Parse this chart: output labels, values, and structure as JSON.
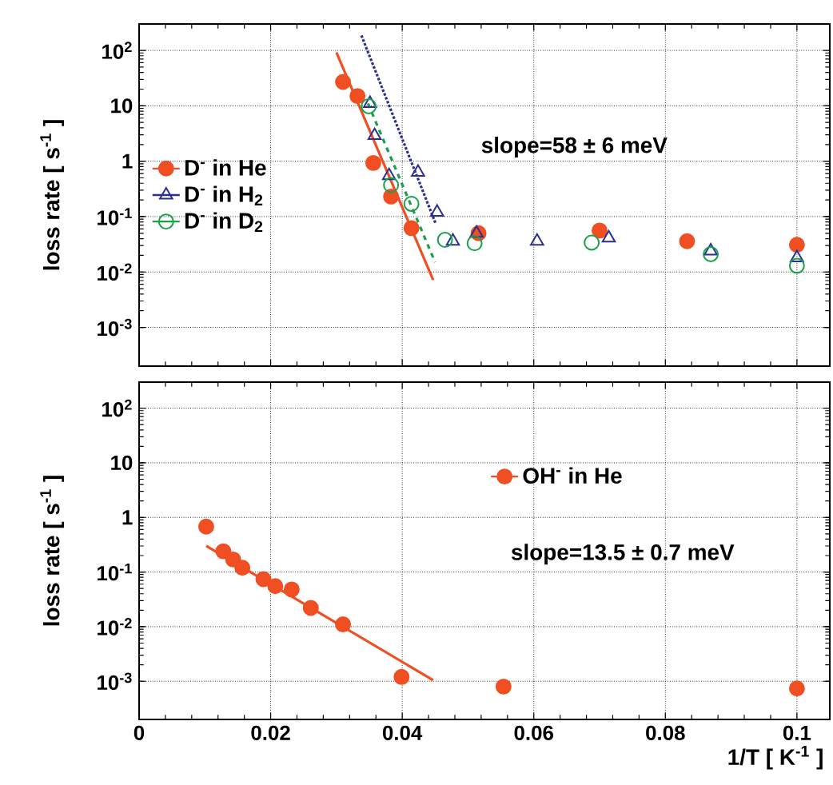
{
  "chart_data": [
    {
      "type": "scatter",
      "ylabel": "loss rate [ s$^{-1}$ ]",
      "log": "y",
      "grid": true,
      "legend": "left",
      "tick_labels": "y",
      "xlim": [
        0,
        0.105
      ],
      "xticks": [
        0,
        0.02,
        0.04,
        0.06,
        0.08,
        0.1
      ],
      "ylim": [
        0.0002,
        300
      ],
      "yticks": [
        {
          "value": 0.001,
          "label": "10$^{-3}$"
        },
        {
          "value": 0.01,
          "label": "10$^{-2}$"
        },
        {
          "value": 0.1,
          "label": "10$^{-1}$"
        },
        1,
        10,
        {
          "value": 100,
          "label": "10$^{2}$"
        }
      ],
      "annotations": [
        "slope=58 ± 6 meV"
      ],
      "series": [
        {
          "name": "D$^{-}$ in He",
          "color": "#f04e23",
          "marker": "circle",
          "x": [
            0.031,
            0.0332,
            0.0356,
            0.0383,
            0.0414,
            0.0516,
            0.07,
            0.0833,
            0.1
          ],
          "values": [
            27,
            15,
            0.93,
            0.23,
            0.062,
            0.05,
            0.056,
            0.036,
            0.031
          ]
        },
        {
          "name": "D$^{-}$ in H$_{2}$",
          "color": "#2b2f8f",
          "marker": "triangle",
          "x": [
            0.0351,
            0.0358,
            0.038,
            0.0424,
            0.0453,
            0.0477,
            0.0513,
            0.0605,
            0.0714,
            0.0869,
            0.1
          ],
          "values": [
            11,
            2.9,
            0.55,
            0.63,
            0.12,
            0.036,
            0.05,
            0.036,
            0.041,
            0.024,
            0.018
          ]
        },
        {
          "name": "D$^{-}$ in D$_{2}$",
          "color": "#1aa04a",
          "marker": "circle",
          "x": [
            0.0349,
            0.0383,
            0.0414,
            0.0465,
            0.051,
            0.0688,
            0.0869,
            0.1
          ],
          "values": [
            9.8,
            0.37,
            0.17,
            0.038,
            0.033,
            0.034,
            0.021,
            0.013
          ]
        },
        {
          "type": "line",
          "color": "#f04e23",
          "line_style": "solid",
          "x": [
            0.03,
            0.0447
          ],
          "values": [
            92,
            0.0072
          ]
        },
        {
          "type": "line",
          "color": "#2b2f8f",
          "line_style": "dotted",
          "x": [
            0.0338,
            0.0451
          ],
          "values": [
            186,
            0.074
          ]
        },
        {
          "type": "line",
          "color": "#1aa04a",
          "line_style": "dashed",
          "x": [
            0.0348,
            0.045
          ],
          "values": [
            11,
            0.015
          ]
        }
      ]
    },
    {
      "type": "scatter",
      "ylabel": "loss rate [ s$^{-1}$ ]",
      "xlabel": "1/T [ K$^{-1}$ ]",
      "log": "y",
      "grid": true,
      "legend": "right",
      "xlim": [
        0,
        0.105
      ],
      "xticks": [
        0,
        0.02,
        0.04,
        0.06,
        0.08,
        0.1
      ],
      "ylim": [
        0.0002,
        300
      ],
      "yticks": [
        {
          "value": 0.001,
          "label": "10$^{-3}$"
        },
        {
          "value": 0.01,
          "label": "10$^{-2}$"
        },
        {
          "value": 0.1,
          "label": "10$^{-1}$"
        },
        1,
        10,
        {
          "value": 100,
          "label": "10$^{2}$"
        }
      ],
      "annotations": [
        "slope=13.5 ± 0.7 meV"
      ],
      "series": [
        {
          "name": "OH$^{-}$ in He",
          "color": "#f04e23",
          "marker": "circle",
          "x": [
            0.0102,
            0.0128,
            0.0143,
            0.0157,
            0.0189,
            0.0207,
            0.0232,
            0.0261,
            0.031,
            0.0399,
            0.0554,
            0.1
          ],
          "values": [
            0.68,
            0.24,
            0.17,
            0.12,
            0.074,
            0.055,
            0.048,
            0.022,
            0.011,
            0.0012,
            0.0008,
            0.00074
          ]
        },
        {
          "type": "line",
          "color": "#f04e23",
          "line_style": "solid",
          "x": [
            0.0102,
            0.0447
          ],
          "values": [
            0.3,
            0.00105
          ]
        }
      ]
    }
  ]
}
